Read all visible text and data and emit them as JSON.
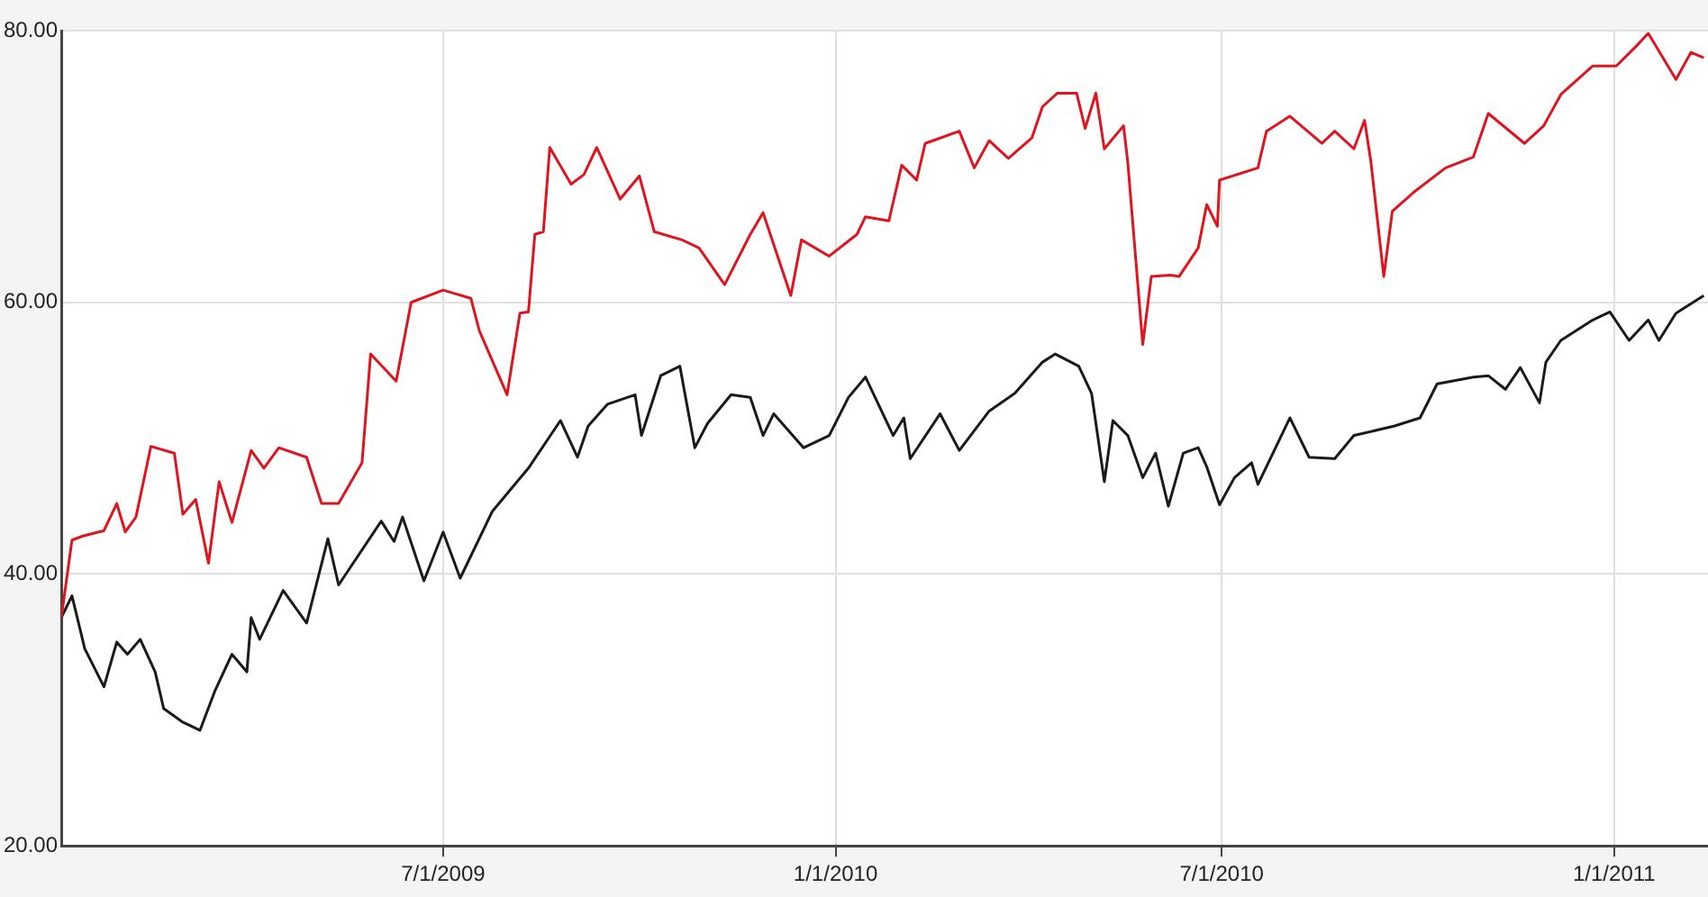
{
  "chart_data": {
    "type": "line",
    "xlim": [
      "2009-01-03",
      "2011-02-14"
    ],
    "ylim": [
      20,
      80
    ],
    "xticks": [
      {
        "value": "2009-07-01",
        "label": "7/1/2009"
      },
      {
        "value": "2010-01-01",
        "label": "1/1/2010"
      },
      {
        "value": "2010-07-01",
        "label": "7/1/2010"
      },
      {
        "value": "2011-01-01",
        "label": "1/1/2011"
      }
    ],
    "yticks": [
      {
        "value": 20,
        "label": "20.00"
      },
      {
        "value": 40,
        "label": "40.00"
      },
      {
        "value": 60,
        "label": "60.00"
      },
      {
        "value": 80,
        "label": "80.00"
      }
    ],
    "grid": true,
    "legend": false,
    "marker": "none",
    "line_style": "solid",
    "series": [
      {
        "color": "#e0141e",
        "x": [
          "2009-01-03",
          "2009-01-08",
          "2009-01-13",
          "2009-01-23",
          "2009-01-29",
          "2009-02-02",
          "2009-02-07",
          "2009-02-14",
          "2009-02-25",
          "2009-03-01",
          "2009-03-07",
          "2009-03-13",
          "2009-03-18",
          "2009-03-24",
          "2009-04-02",
          "2009-04-08",
          "2009-04-15",
          "2009-04-28",
          "2009-05-05",
          "2009-05-13",
          "2009-05-24",
          "2009-05-28",
          "2009-06-09",
          "2009-06-16",
          "2009-07-01",
          "2009-07-14",
          "2009-07-18",
          "2009-07-31",
          "2009-08-06",
          "2009-08-10",
          "2009-08-13",
          "2009-08-17",
          "2009-08-20",
          "2009-08-30",
          "2009-09-05",
          "2009-09-11",
          "2009-09-22",
          "2009-10-01",
          "2009-10-08",
          "2009-10-21",
          "2009-10-29",
          "2009-11-10",
          "2009-11-22",
          "2009-11-28",
          "2009-12-11",
          "2009-12-16",
          "2009-12-29",
          "2010-01-11",
          "2010-01-15",
          "2010-01-26",
          "2010-02-01",
          "2010-02-08",
          "2010-02-12",
          "2010-02-28",
          "2010-03-07",
          "2010-03-14",
          "2010-03-23",
          "2010-04-03",
          "2010-04-08",
          "2010-04-15",
          "2010-04-24",
          "2010-04-28",
          "2010-05-03",
          "2010-05-07",
          "2010-05-16",
          "2010-05-18",
          "2010-05-25",
          "2010-05-29",
          "2010-06-07",
          "2010-06-11",
          "2010-06-20",
          "2010-06-24",
          "2010-06-29",
          "2010-06-30",
          "2010-07-18",
          "2010-07-22",
          "2010-08-02",
          "2010-08-17",
          "2010-08-23",
          "2010-09-01",
          "2010-09-06",
          "2010-09-09",
          "2010-09-15",
          "2010-09-19",
          "2010-09-29",
          "2010-10-14",
          "2010-10-27",
          "2010-11-03",
          "2010-11-20",
          "2010-11-29",
          "2010-12-07",
          "2010-12-22",
          "2011-01-02",
          "2011-01-11",
          "2011-01-17",
          "2011-01-30",
          "2011-02-06",
          "2011-02-12"
        ],
        "values": [
          36.8,
          42.5,
          42.8,
          43.2,
          45.2,
          43.1,
          44.2,
          49.4,
          48.9,
          44.4,
          45.5,
          40.8,
          46.8,
          43.8,
          49.1,
          47.8,
          49.3,
          48.6,
          45.2,
          45.2,
          48.2,
          56.2,
          54.2,
          60.0,
          60.9,
          60.3,
          57.9,
          53.2,
          59.2,
          59.3,
          65.0,
          65.2,
          71.4,
          68.7,
          69.4,
          71.4,
          67.6,
          69.3,
          65.2,
          64.6,
          64.0,
          61.3,
          65.0,
          66.6,
          60.5,
          64.6,
          63.4,
          65.0,
          66.3,
          66.0,
          70.1,
          69.0,
          71.7,
          72.6,
          69.9,
          71.9,
          70.6,
          72.1,
          74.4,
          75.4,
          75.4,
          72.8,
          75.4,
          71.3,
          73.0,
          70.3,
          56.9,
          61.9,
          62.0,
          61.9,
          64.0,
          67.2,
          65.6,
          69.0,
          69.9,
          72.6,
          73.7,
          71.7,
          72.6,
          71.3,
          73.4,
          70.3,
          61.9,
          66.7,
          68.1,
          69.9,
          70.7,
          73.9,
          71.7,
          73.0,
          75.3,
          77.4,
          77.4,
          78.8,
          79.8,
          76.4,
          78.4,
          78.0
        ]
      },
      {
        "color": "#1a1a1a",
        "x": [
          "2009-01-03",
          "2009-01-08",
          "2009-01-14",
          "2009-01-23",
          "2009-01-29",
          "2009-02-03",
          "2009-02-09",
          "2009-02-16",
          "2009-02-20",
          "2009-03-01",
          "2009-03-09",
          "2009-03-16",
          "2009-03-24",
          "2009-03-31",
          "2009-04-02",
          "2009-04-06",
          "2009-04-17",
          "2009-04-28",
          "2009-05-08",
          "2009-05-13",
          "2009-06-02",
          "2009-06-08",
          "2009-06-12",
          "2009-06-22",
          "2009-07-01",
          "2009-07-09",
          "2009-07-24",
          "2009-08-10",
          "2009-08-25",
          "2009-09-02",
          "2009-09-07",
          "2009-09-16",
          "2009-09-29",
          "2009-10-02",
          "2009-10-11",
          "2009-10-20",
          "2009-10-27",
          "2009-11-02",
          "2009-11-13",
          "2009-11-22",
          "2009-11-28",
          "2009-12-03",
          "2009-12-17",
          "2009-12-29",
          "2010-01-07",
          "2010-01-15",
          "2010-01-28",
          "2010-02-02",
          "2010-02-05",
          "2010-02-19",
          "2010-02-28",
          "2010-03-14",
          "2010-03-26",
          "2010-04-08",
          "2010-04-14",
          "2010-04-25",
          "2010-05-01",
          "2010-05-07",
          "2010-05-11",
          "2010-05-18",
          "2010-05-25",
          "2010-05-31",
          "2010-06-06",
          "2010-06-13",
          "2010-06-20",
          "2010-06-24",
          "2010-06-30",
          "2010-07-07",
          "2010-07-15",
          "2010-07-18",
          "2010-08-02",
          "2010-08-11",
          "2010-08-23",
          "2010-09-01",
          "2010-09-20",
          "2010-10-02",
          "2010-10-10",
          "2010-10-27",
          "2010-11-03",
          "2010-11-11",
          "2010-11-18",
          "2010-11-27",
          "2010-11-30",
          "2010-12-07",
          "2010-12-22",
          "2010-12-30",
          "2011-01-08",
          "2011-01-17",
          "2011-01-22",
          "2011-01-30",
          "2011-02-12"
        ],
        "values": [
          36.8,
          38.4,
          34.5,
          31.7,
          35.0,
          34.1,
          35.2,
          32.8,
          30.1,
          29.1,
          28.5,
          31.4,
          34.1,
          32.8,
          36.8,
          35.2,
          38.8,
          36.4,
          42.6,
          39.2,
          43.9,
          42.4,
          44.2,
          39.5,
          43.1,
          39.7,
          44.6,
          47.8,
          51.3,
          48.6,
          50.9,
          52.5,
          53.2,
          50.2,
          54.6,
          55.3,
          49.3,
          51.1,
          53.2,
          53.0,
          50.2,
          51.8,
          49.3,
          50.2,
          53.0,
          54.5,
          50.2,
          51.5,
          48.5,
          51.8,
          49.1,
          52.0,
          53.3,
          55.6,
          56.2,
          55.3,
          53.3,
          46.8,
          51.3,
          50.2,
          47.1,
          48.9,
          45.0,
          48.9,
          49.3,
          47.9,
          45.1,
          47.1,
          48.2,
          46.6,
          51.5,
          48.6,
          48.5,
          50.2,
          50.9,
          51.5,
          54.0,
          54.5,
          54.6,
          53.6,
          55.2,
          52.6,
          55.6,
          57.2,
          58.7,
          59.3,
          57.2,
          58.7,
          57.2,
          59.2,
          60.5
        ]
      }
    ]
  }
}
